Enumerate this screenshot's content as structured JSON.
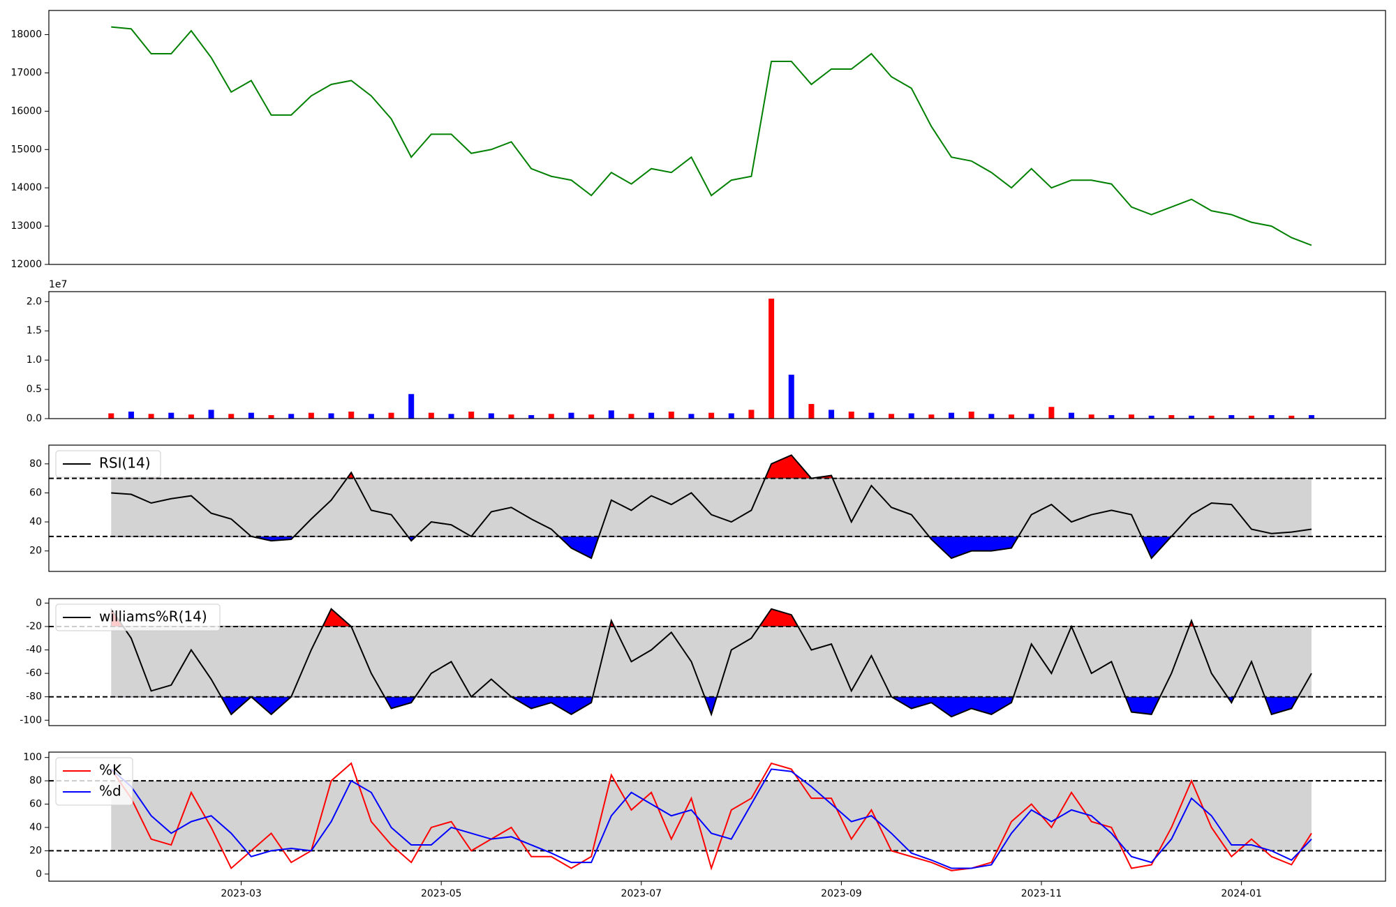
{
  "chart_data": [
    {
      "type": "line",
      "xlim": [
        0.077,
        13.44
      ],
      "ylim": [
        12000,
        18630
      ],
      "yticks": [
        12000,
        13000,
        14000,
        15000,
        16000,
        17000,
        18000
      ],
      "x": [
        0.7,
        0.9,
        1.1,
        1.3,
        1.5,
        1.7,
        1.9,
        2.1,
        2.3,
        2.5,
        2.7,
        2.9,
        3.1,
        3.3,
        3.5,
        3.7,
        3.9,
        4.1,
        4.3,
        4.5,
        4.7,
        4.9,
        5.1,
        5.3,
        5.5,
        5.7,
        5.9,
        6.1,
        6.3,
        6.5,
        6.7,
        6.9,
        7.1,
        7.3,
        7.5,
        7.7,
        7.9,
        8.1,
        8.3,
        8.5,
        8.7,
        8.9,
        9.1,
        9.3,
        9.5,
        9.7,
        9.9,
        10.1,
        10.3,
        10.5,
        10.7,
        10.9,
        11.1,
        11.3,
        11.5,
        11.7,
        11.9,
        12.1,
        12.3,
        12.5,
        12.7
      ],
      "series": [
        {
          "color": "#008000",
          "values": [
            18200,
            18150,
            17500,
            17500,
            18100,
            17400,
            16500,
            16800,
            15900,
            15900,
            16400,
            16700,
            16800,
            16400,
            15800,
            14800,
            15400,
            15400,
            14900,
            15000,
            15200,
            14500,
            14300,
            14200,
            13800,
            14400,
            14100,
            14500,
            14400,
            14800,
            13800,
            14200,
            14300,
            17300,
            17300,
            16700,
            17100,
            17100,
            17500,
            16900,
            16600,
            15600,
            14800,
            14700,
            14400,
            14000,
            14500,
            14000,
            14200,
            14200,
            14100,
            13500,
            13300,
            13500,
            13700,
            13400,
            13300,
            13100,
            13000,
            12700,
            12500
          ]
        }
      ]
    },
    {
      "type": "bar",
      "xlim": [
        0.077,
        13.44
      ],
      "ylim": [
        0,
        2.17
      ],
      "offset_label": "1e7",
      "yticks": [
        {
          "value": 0,
          "label": "0.0"
        },
        0.5,
        {
          "value": 1,
          "label": "1.0"
        },
        1.5,
        {
          "value": 2,
          "label": "2.0"
        }
      ],
      "x": [
        0.7,
        0.9,
        1.1,
        1.3,
        1.5,
        1.7,
        1.9,
        2.1,
        2.3,
        2.5,
        2.7,
        2.9,
        3.1,
        3.3,
        3.5,
        3.7,
        3.9,
        4.1,
        4.3,
        4.5,
        4.7,
        4.9,
        5.1,
        5.3,
        5.5,
        5.7,
        5.9,
        6.1,
        6.3,
        6.5,
        6.7,
        6.9,
        7.1,
        7.3,
        7.5,
        7.7,
        7.9,
        8.1,
        8.3,
        8.5,
        8.7,
        8.9,
        9.1,
        9.3,
        9.5,
        9.7,
        9.9,
        10.1,
        10.3,
        10.5,
        10.7,
        10.9,
        11.1,
        11.3,
        11.5,
        11.7,
        11.9,
        12.1,
        12.3,
        12.5,
        12.7
      ],
      "values": [
        0.09,
        0.12,
        0.08,
        0.1,
        0.07,
        0.15,
        0.08,
        0.1,
        0.06,
        0.08,
        0.1,
        0.09,
        0.12,
        0.08,
        0.1,
        0.42,
        0.1,
        0.08,
        0.12,
        0.09,
        0.07,
        0.06,
        0.08,
        0.1,
        0.07,
        0.14,
        0.08,
        0.1,
        0.12,
        0.08,
        0.1,
        0.09,
        0.15,
        2.05,
        0.75,
        0.25,
        0.15,
        0.12,
        0.1,
        0.08,
        0.09,
        0.07,
        0.1,
        0.12,
        0.08,
        0.07,
        0.08,
        0.2,
        0.1,
        0.07,
        0.06,
        0.07,
        0.05,
        0.06,
        0.05,
        0.05,
        0.06,
        0.05,
        0.06,
        0.05,
        0.06
      ],
      "colors": [
        "red",
        "blue",
        "red",
        "blue",
        "red",
        "blue",
        "red",
        "blue",
        "red",
        "blue",
        "red",
        "blue",
        "red",
        "blue",
        "red",
        "blue",
        "red",
        "blue",
        "red",
        "blue",
        "red",
        "blue",
        "red",
        "blue",
        "red",
        "blue",
        "red",
        "blue",
        "red",
        "blue",
        "red",
        "blue",
        "red",
        "red",
        "blue",
        "red",
        "blue",
        "red",
        "blue",
        "red",
        "blue",
        "red",
        "blue",
        "red",
        "blue",
        "red",
        "blue",
        "red",
        "blue",
        "red",
        "blue",
        "red",
        "blue",
        "red",
        "blue",
        "red",
        "blue",
        "red",
        "blue",
        "red",
        "blue"
      ]
    },
    {
      "type": "line",
      "xlim": [
        0.077,
        13.44
      ],
      "ylim": [
        5.9,
        92.9
      ],
      "yticks": [
        20,
        40,
        60,
        80
      ],
      "legend": "upper left",
      "levels": [
        30,
        70
      ],
      "band_color": "#d3d3d3",
      "above_color": "#ff0000",
      "below_color": "#0000ff",
      "x": [
        0.7,
        0.9,
        1.1,
        1.3,
        1.5,
        1.7,
        1.9,
        2.1,
        2.3,
        2.5,
        2.7,
        2.9,
        3.1,
        3.3,
        3.5,
        3.7,
        3.9,
        4.1,
        4.3,
        4.5,
        4.7,
        4.9,
        5.1,
        5.3,
        5.5,
        5.7,
        5.9,
        6.1,
        6.3,
        6.5,
        6.7,
        6.9,
        7.1,
        7.3,
        7.5,
        7.7,
        7.9,
        8.1,
        8.3,
        8.5,
        8.7,
        8.9,
        9.1,
        9.3,
        9.5,
        9.7,
        9.9,
        10.1,
        10.3,
        10.5,
        10.7,
        10.9,
        11.1,
        11.3,
        11.5,
        11.7,
        11.9,
        12.1,
        12.3,
        12.5,
        12.7
      ],
      "series": [
        {
          "name": "RSI(14)",
          "color": "#000000",
          "values": [
            60,
            59,
            53,
            56,
            58,
            46,
            42,
            30,
            27,
            28,
            42,
            55,
            74,
            48,
            45,
            27,
            40,
            38,
            30,
            47,
            50,
            42,
            35,
            22,
            15,
            55,
            48,
            58,
            52,
            60,
            45,
            40,
            48,
            80,
            86,
            70,
            72,
            40,
            65,
            50,
            45,
            28,
            15,
            20,
            20,
            22,
            45,
            52,
            40,
            45,
            48,
            45,
            15,
            30,
            45,
            53,
            52,
            35,
            32,
            33,
            35
          ]
        }
      ]
    },
    {
      "type": "line",
      "xlim": [
        0.077,
        13.44
      ],
      "ylim": [
        -104.6,
        3.8
      ],
      "yticks": [
        0,
        -20,
        -40,
        -60,
        -80,
        -100
      ],
      "legend": "upper left",
      "levels": [
        -80,
        -20
      ],
      "band_color": "#d3d3d3",
      "above_color": "#ff0000",
      "below_color": "#0000ff",
      "x": [
        0.7,
        0.9,
        1.1,
        1.3,
        1.5,
        1.7,
        1.9,
        2.1,
        2.3,
        2.5,
        2.7,
        2.9,
        3.1,
        3.3,
        3.5,
        3.7,
        3.9,
        4.1,
        4.3,
        4.5,
        4.7,
        4.9,
        5.1,
        5.3,
        5.5,
        5.7,
        5.9,
        6.1,
        6.3,
        6.5,
        6.7,
        6.9,
        7.1,
        7.3,
        7.5,
        7.7,
        7.9,
        8.1,
        8.3,
        8.5,
        8.7,
        8.9,
        9.1,
        9.3,
        9.5,
        9.7,
        9.9,
        10.1,
        10.3,
        10.5,
        10.7,
        10.9,
        11.1,
        11.3,
        11.5,
        11.7,
        11.9,
        12.1,
        12.3,
        12.5,
        12.7
      ],
      "series": [
        {
          "name": "williams%R(14)",
          "color": "#000000",
          "values": [
            -5,
            -30,
            -75,
            -70,
            -40,
            -65,
            -95,
            -80,
            -95,
            -80,
            -40,
            -5,
            -20,
            -60,
            -90,
            -85,
            -60,
            -50,
            -80,
            -65,
            -80,
            -90,
            -85,
            -95,
            -85,
            -15,
            -50,
            -40,
            -25,
            -50,
            -95,
            -40,
            -30,
            -5,
            -10,
            -40,
            -35,
            -75,
            -45,
            -80,
            -90,
            -85,
            -97,
            -90,
            -95,
            -85,
            -35,
            -60,
            -20,
            -60,
            -50,
            -93,
            -95,
            -60,
            -15,
            -60,
            -85,
            -50,
            -95,
            -90,
            -60
          ]
        }
      ]
    },
    {
      "type": "line",
      "xlim": [
        0.077,
        13.44
      ],
      "ylim": [
        -6.1,
        104.6
      ],
      "yticks": [
        0,
        20,
        40,
        60,
        80,
        100
      ],
      "legend": "upper left",
      "levels": [
        20,
        80
      ],
      "band_color": "#d3d3d3",
      "xticks": [
        {
          "value": 2,
          "label": "2023-03"
        },
        {
          "value": 4,
          "label": "2023-05"
        },
        {
          "value": 6,
          "label": "2023-07"
        },
        {
          "value": 8,
          "label": "2023-09"
        },
        {
          "value": 10,
          "label": "2023-11"
        },
        {
          "value": 12,
          "label": "2024-01"
        }
      ],
      "x": [
        0.7,
        0.9,
        1.1,
        1.3,
        1.5,
        1.7,
        1.9,
        2.1,
        2.3,
        2.5,
        2.7,
        2.9,
        3.1,
        3.3,
        3.5,
        3.7,
        3.9,
        4.1,
        4.3,
        4.5,
        4.7,
        4.9,
        5.1,
        5.3,
        5.5,
        5.7,
        5.9,
        6.1,
        6.3,
        6.5,
        6.7,
        6.9,
        7.1,
        7.3,
        7.5,
        7.7,
        7.9,
        8.1,
        8.3,
        8.5,
        8.7,
        8.9,
        9.1,
        9.3,
        9.5,
        9.7,
        9.9,
        10.1,
        10.3,
        10.5,
        10.7,
        10.9,
        11.1,
        11.3,
        11.5,
        11.7,
        11.9,
        12.1,
        12.3,
        12.5,
        12.7
      ],
      "series": [
        {
          "name": "%K",
          "color": "#ff0000",
          "values": [
            90,
            65,
            30,
            25,
            70,
            40,
            5,
            20,
            35,
            10,
            20,
            80,
            95,
            45,
            25,
            10,
            40,
            45,
            20,
            30,
            40,
            15,
            15,
            5,
            15,
            85,
            55,
            70,
            30,
            65,
            5,
            55,
            65,
            95,
            90,
            65,
            65,
            30,
            55,
            20,
            15,
            10,
            3,
            5,
            10,
            45,
            60,
            40,
            70,
            45,
            40,
            5,
            8,
            40,
            80,
            40,
            15,
            30,
            15,
            8,
            35
          ]
        },
        {
          "name": "%d",
          "color": "#0000ff",
          "values": [
            90,
            75,
            50,
            35,
            45,
            50,
            35,
            15,
            20,
            22,
            20,
            45,
            80,
            70,
            40,
            25,
            25,
            40,
            35,
            30,
            32,
            25,
            18,
            10,
            10,
            50,
            70,
            60,
            50,
            55,
            35,
            30,
            60,
            90,
            88,
            75,
            60,
            45,
            50,
            35,
            18,
            12,
            5,
            5,
            8,
            35,
            55,
            45,
            55,
            50,
            35,
            15,
            10,
            30,
            65,
            50,
            25,
            25,
            20,
            12,
            30
          ]
        }
      ]
    }
  ]
}
